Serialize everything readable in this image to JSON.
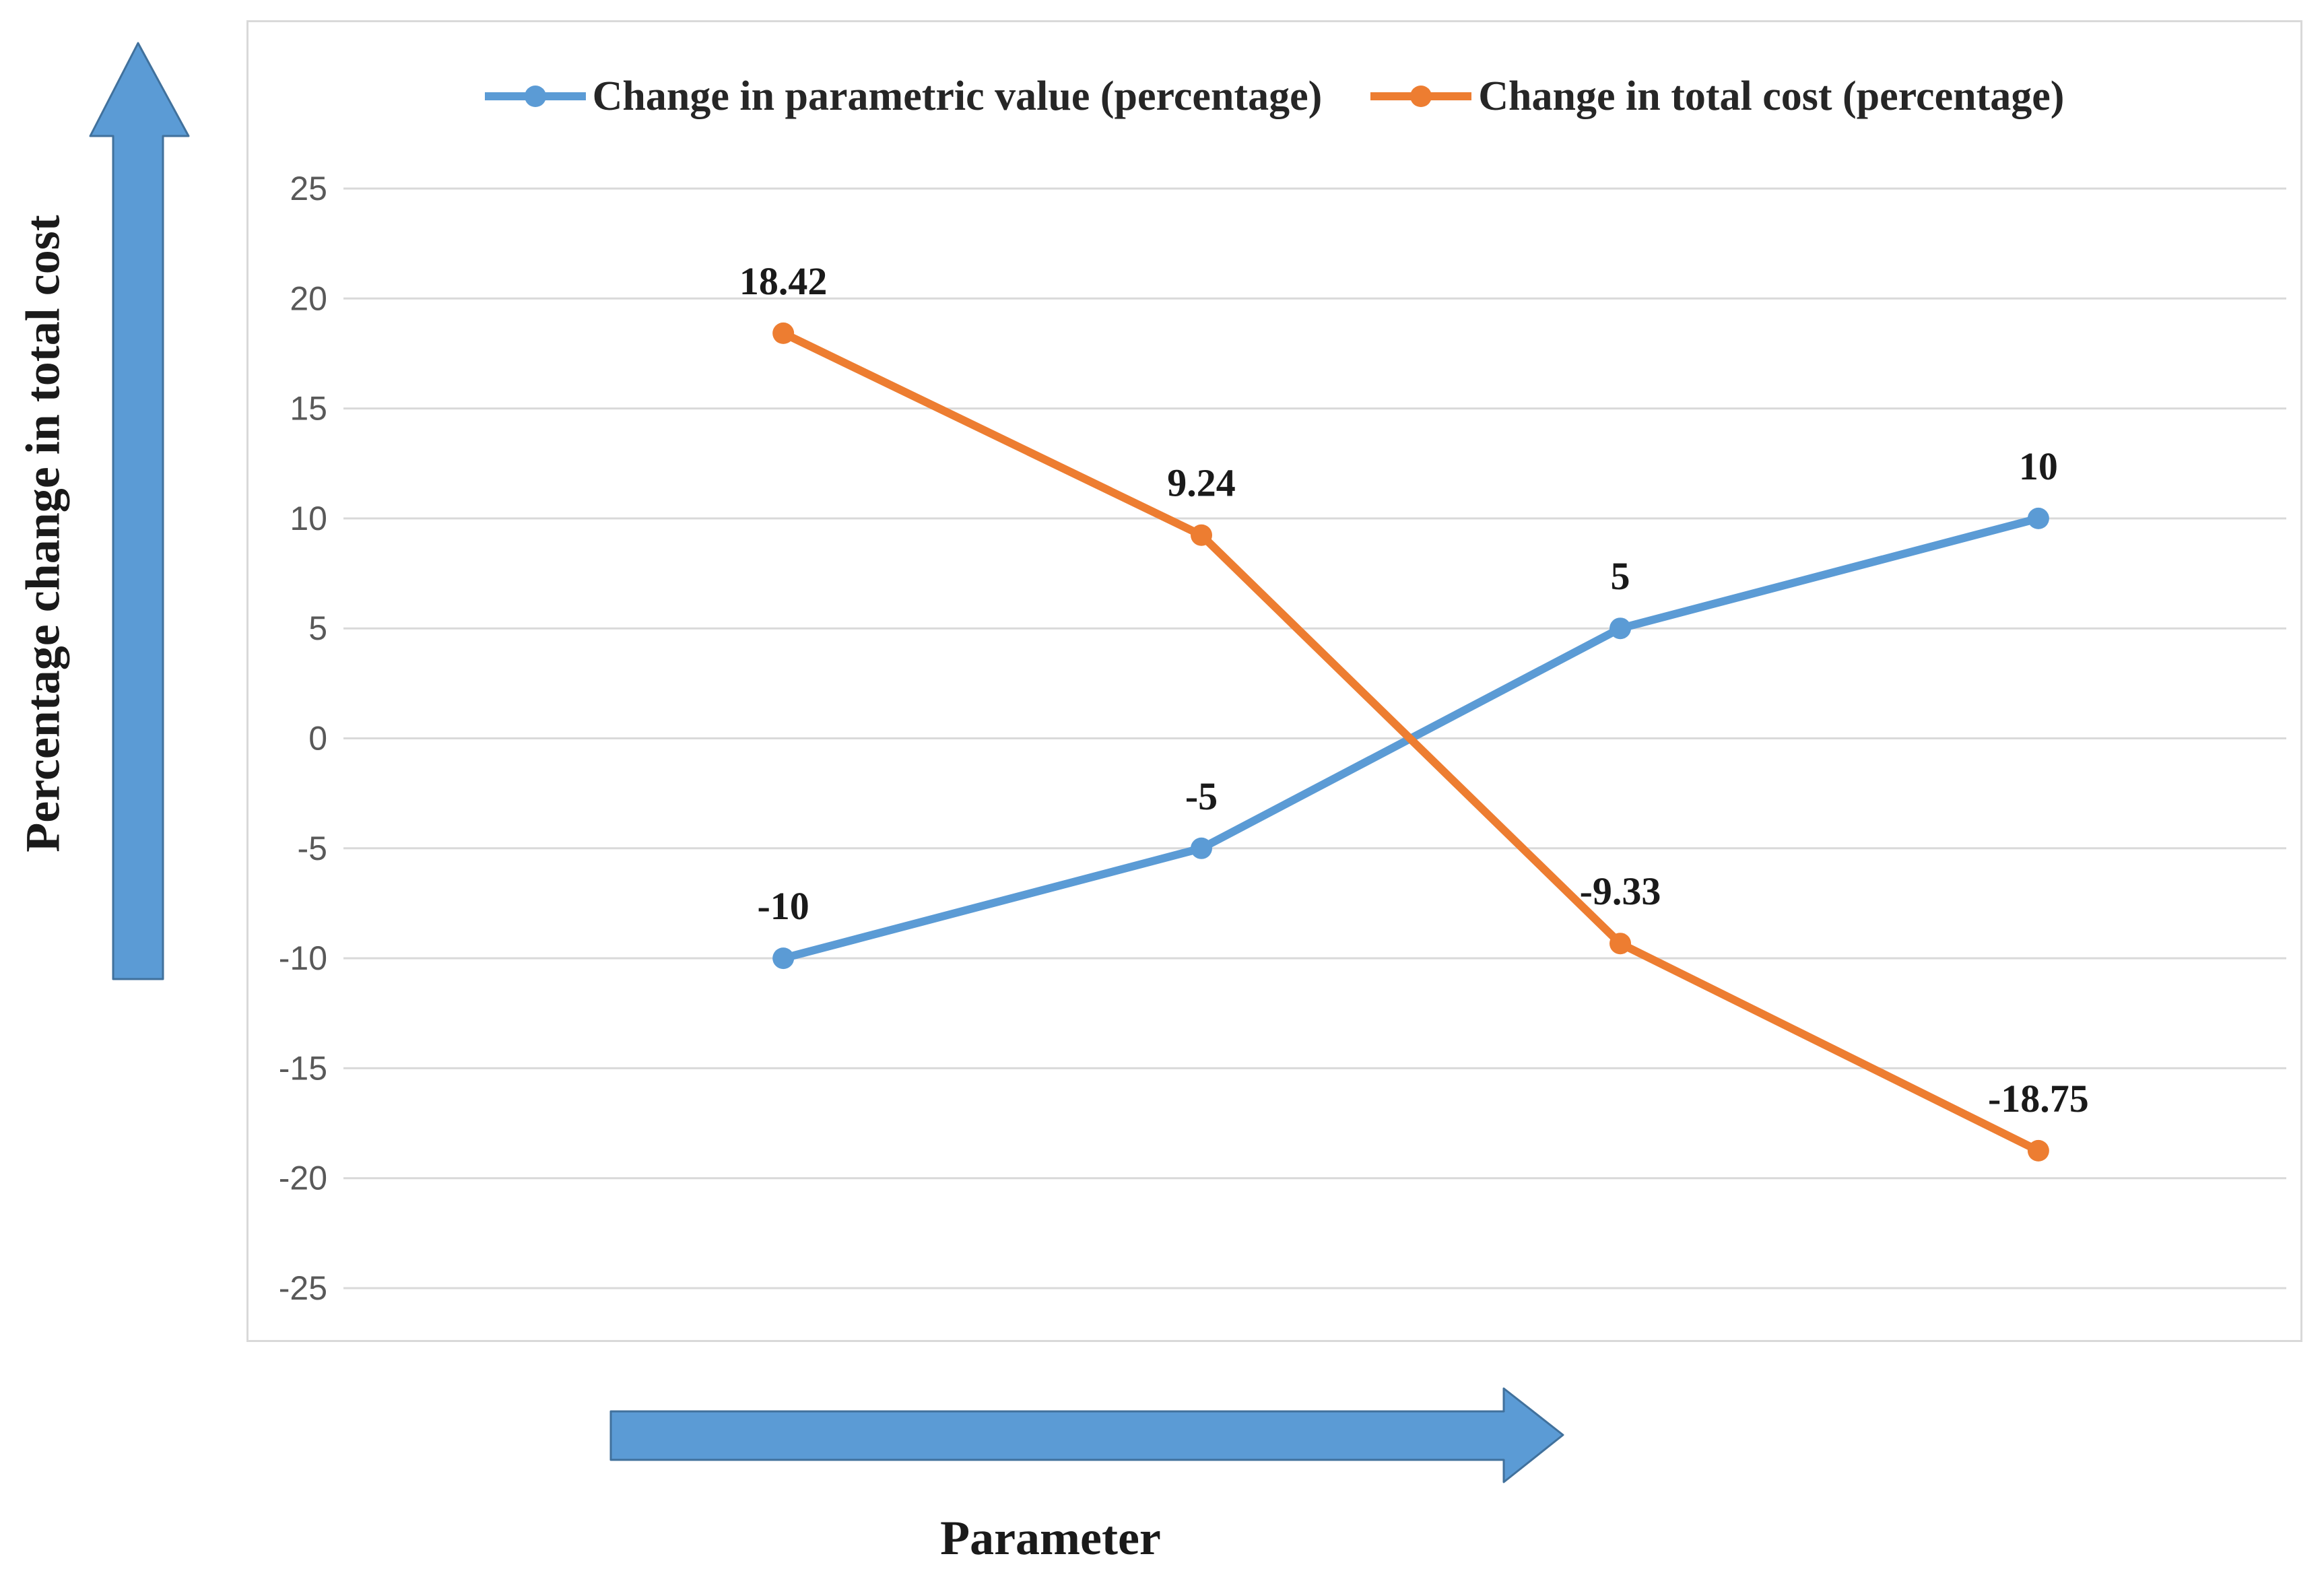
{
  "figure": {
    "y_axis_title": "Percentage change in total cost",
    "x_axis_title": "Parameter",
    "background_color": "#FFFFFF",
    "panel_border_color": "#D9D9D9",
    "axis_arrow": {
      "fill": "#5B9BD5",
      "stroke": "#41719C",
      "up_arrow_name": "y-axis-direction-arrow",
      "right_arrow_name": "x-axis-direction-arrow"
    }
  },
  "chart_data": {
    "type": "line",
    "categories": [
      "",
      "",
      "",
      ""
    ],
    "series": [
      {
        "name": "Change in parametric value (percentage)",
        "color": "#5B9BD5",
        "values": [
          -10,
          -5,
          5,
          10
        ],
        "data_labels": [
          "-10",
          "-5",
          "5",
          "10"
        ]
      },
      {
        "name": "Change in total cost (percentage)",
        "color": "#ED7D31",
        "values": [
          18.42,
          9.24,
          -9.33,
          -18.75
        ],
        "data_labels": [
          "18.42",
          "9.24",
          "-9.33",
          "-18.75"
        ]
      }
    ],
    "y_ticks": [
      25,
      20,
      15,
      10,
      5,
      0,
      -5,
      -10,
      -15,
      -20,
      -25
    ],
    "ylim": [
      -25,
      25
    ],
    "grid": true,
    "gridline_color": "#D9D9D9",
    "tick_label_color": "#595959",
    "data_label_color": "#1A1A1A",
    "legend_position": "top",
    "legend_text_color": "#262626",
    "marker": "circle"
  }
}
